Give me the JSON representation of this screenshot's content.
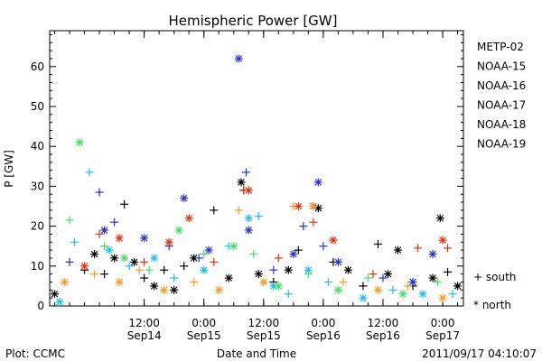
{
  "chart_data": {
    "type": "scatter",
    "title": "Hemispheric Power [GW]",
    "xlabel": "Date and Time",
    "ylabel": "P [GW]",
    "ylim": [
      0,
      69
    ],
    "yticks": [
      0,
      10,
      20,
      30,
      40,
      50,
      60
    ],
    "xlim": [
      "2011-09-13 17:00",
      "2011-09-17 04:10"
    ],
    "xticks": [
      {
        "time": "2011-09-14 12:00",
        "label": "12:00",
        "sublabel": "Sep14"
      },
      {
        "time": "2011-09-15 00:00",
        "label": "0:00",
        "sublabel": "Sep15"
      },
      {
        "time": "2011-09-15 12:00",
        "label": "12:00",
        "sublabel": "Sep15"
      },
      {
        "time": "2011-09-16 00:00",
        "label": "0:00",
        "sublabel": "Sep16"
      },
      {
        "time": "2011-09-16 12:00",
        "label": "12:00",
        "sublabel": "Sep16"
      },
      {
        "time": "2011-09-17 00:00",
        "label": "0:00",
        "sublabel": "Sep17"
      }
    ],
    "grid": false,
    "legend_position": "right",
    "markers": {
      "south": "+",
      "north": "*"
    },
    "marker_legend": [
      {
        "symbol": "+",
        "label": "south"
      },
      {
        "symbol": "*",
        "label": "north"
      }
    ],
    "series": [
      {
        "name": "METP-02",
        "color": "#000000",
        "points": [
          {
            "t": "2011-09-13 18:00",
            "y": 3,
            "hemi": "north"
          },
          {
            "t": "2011-09-14 00:00",
            "y": 9,
            "hemi": "south"
          },
          {
            "t": "2011-09-14 02:00",
            "y": 13,
            "hemi": "north"
          },
          {
            "t": "2011-09-14 04:00",
            "y": 8,
            "hemi": "south"
          },
          {
            "t": "2011-09-14 06:00",
            "y": 12,
            "hemi": "north"
          },
          {
            "t": "2011-09-14 08:00",
            "y": 25.5,
            "hemi": "south"
          },
          {
            "t": "2011-09-14 10:00",
            "y": 11,
            "hemi": "north"
          },
          {
            "t": "2011-09-14 12:00",
            "y": 7,
            "hemi": "south"
          },
          {
            "t": "2011-09-14 14:00",
            "y": 5,
            "hemi": "north"
          },
          {
            "t": "2011-09-14 16:00",
            "y": 9,
            "hemi": "south"
          },
          {
            "t": "2011-09-14 18:00",
            "y": 4,
            "hemi": "north"
          },
          {
            "t": "2011-09-14 20:00",
            "y": 10,
            "hemi": "south"
          },
          {
            "t": "2011-09-14 22:00",
            "y": 12,
            "hemi": "north"
          },
          {
            "t": "2011-09-15 02:00",
            "y": 24,
            "hemi": "south"
          },
          {
            "t": "2011-09-15 05:00",
            "y": 7,
            "hemi": "north"
          },
          {
            "t": "2011-09-15 07:30",
            "y": 31,
            "hemi": "north"
          },
          {
            "t": "2011-09-15 08:00",
            "y": 29,
            "hemi": "south"
          },
          {
            "t": "2011-09-15 11:00",
            "y": 8,
            "hemi": "north"
          },
          {
            "t": "2011-09-15 14:00",
            "y": 6,
            "hemi": "south"
          },
          {
            "t": "2011-09-15 17:00",
            "y": 9,
            "hemi": "north"
          },
          {
            "t": "2011-09-15 19:00",
            "y": 14,
            "hemi": "south"
          },
          {
            "t": "2011-09-15 22:00",
            "y": 25,
            "hemi": "north"
          },
          {
            "t": "2011-09-15 23:00",
            "y": 24.5,
            "hemi": "north"
          },
          {
            "t": "2011-09-16 02:00",
            "y": 11,
            "hemi": "south"
          },
          {
            "t": "2011-09-16 05:00",
            "y": 9,
            "hemi": "north"
          },
          {
            "t": "2011-09-16 08:00",
            "y": 5,
            "hemi": "south"
          },
          {
            "t": "2011-09-16 11:00",
            "y": 15.5,
            "hemi": "south"
          },
          {
            "t": "2011-09-16 13:00",
            "y": 8,
            "hemi": "north"
          },
          {
            "t": "2011-09-16 15:00",
            "y": 14,
            "hemi": "north"
          },
          {
            "t": "2011-09-16 18:00",
            "y": 5,
            "hemi": "south"
          },
          {
            "t": "2011-09-16 22:00",
            "y": 7,
            "hemi": "north"
          },
          {
            "t": "2011-09-16 23:30",
            "y": 22,
            "hemi": "north"
          },
          {
            "t": "2011-09-17 01:00",
            "y": 8.5,
            "hemi": "south"
          },
          {
            "t": "2011-09-17 03:00",
            "y": 5,
            "hemi": "north"
          }
        ]
      },
      {
        "name": "NOAA-15",
        "color": "#2233cc",
        "points": [
          {
            "t": "2011-09-13 21:00",
            "y": 11,
            "hemi": "south"
          },
          {
            "t": "2011-09-14 03:00",
            "y": 28.5,
            "hemi": "south"
          },
          {
            "t": "2011-09-14 04:00",
            "y": 19,
            "hemi": "north"
          },
          {
            "t": "2011-09-14 06:00",
            "y": 21,
            "hemi": "south"
          },
          {
            "t": "2011-09-14 12:00",
            "y": 17,
            "hemi": "north"
          },
          {
            "t": "2011-09-14 17:00",
            "y": 15,
            "hemi": "south"
          },
          {
            "t": "2011-09-14 20:00",
            "y": 27,
            "hemi": "north"
          },
          {
            "t": "2011-09-14 23:00",
            "y": 12,
            "hemi": "south"
          },
          {
            "t": "2011-09-15 01:00",
            "y": 14,
            "hemi": "north"
          },
          {
            "t": "2011-09-15 07:00",
            "y": 62,
            "hemi": "north"
          },
          {
            "t": "2011-09-15 08:30",
            "y": 33.5,
            "hemi": "south"
          },
          {
            "t": "2011-09-15 09:00",
            "y": 19,
            "hemi": "north"
          },
          {
            "t": "2011-09-15 14:00",
            "y": 9,
            "hemi": "south"
          },
          {
            "t": "2011-09-15 18:00",
            "y": 13,
            "hemi": "north"
          },
          {
            "t": "2011-09-15 20:00",
            "y": 20,
            "hemi": "south"
          },
          {
            "t": "2011-09-15 23:00",
            "y": 31,
            "hemi": "north"
          },
          {
            "t": "2011-09-16 00:00",
            "y": 15,
            "hemi": "south"
          },
          {
            "t": "2011-09-16 03:00",
            "y": 11,
            "hemi": "north"
          },
          {
            "t": "2011-09-16 12:00",
            "y": 7,
            "hemi": "south"
          },
          {
            "t": "2011-09-16 18:00",
            "y": 6,
            "hemi": "north"
          },
          {
            "t": "2011-09-16 22:00",
            "y": 13,
            "hemi": "north"
          }
        ]
      },
      {
        "name": "NOAA-16",
        "color": "#22bbee",
        "points": [
          {
            "t": "2011-09-13 19:00",
            "y": 1,
            "hemi": "north"
          },
          {
            "t": "2011-09-13 22:00",
            "y": 16,
            "hemi": "south"
          },
          {
            "t": "2011-09-14 01:00",
            "y": 33.5,
            "hemi": "south"
          },
          {
            "t": "2011-09-14 05:00",
            "y": 14,
            "hemi": "north"
          },
          {
            "t": "2011-09-14 09:00",
            "y": 10,
            "hemi": "south"
          },
          {
            "t": "2011-09-14 14:00",
            "y": 12,
            "hemi": "north"
          },
          {
            "t": "2011-09-14 18:00",
            "y": 7,
            "hemi": "south"
          },
          {
            "t": "2011-09-15 00:00",
            "y": 9,
            "hemi": "north"
          },
          {
            "t": "2011-09-15 05:00",
            "y": 15,
            "hemi": "south"
          },
          {
            "t": "2011-09-15 09:00",
            "y": 22,
            "hemi": "north"
          },
          {
            "t": "2011-09-15 11:00",
            "y": 22.5,
            "hemi": "south"
          },
          {
            "t": "2011-09-15 14:00",
            "y": 5,
            "hemi": "north"
          },
          {
            "t": "2011-09-15 17:00",
            "y": 3,
            "hemi": "south"
          },
          {
            "t": "2011-09-15 21:00",
            "y": 9,
            "hemi": "north"
          },
          {
            "t": "2011-09-16 01:00",
            "y": 6,
            "hemi": "south"
          },
          {
            "t": "2011-09-16 08:00",
            "y": 2,
            "hemi": "north"
          },
          {
            "t": "2011-09-16 14:00",
            "y": 4,
            "hemi": "south"
          },
          {
            "t": "2011-09-16 20:00",
            "y": 3,
            "hemi": "north"
          },
          {
            "t": "2011-09-17 02:00",
            "y": 3,
            "hemi": "south"
          }
        ]
      },
      {
        "name": "NOAA-17",
        "color": "#44dd66",
        "points": [
          {
            "t": "2011-09-13 21:00",
            "y": 21.5,
            "hemi": "south"
          },
          {
            "t": "2011-09-13 23:00",
            "y": 41,
            "hemi": "north"
          },
          {
            "t": "2011-09-14 04:00",
            "y": 15,
            "hemi": "south"
          },
          {
            "t": "2011-09-14 08:00",
            "y": 12,
            "hemi": "north"
          },
          {
            "t": "2011-09-14 13:00",
            "y": 9,
            "hemi": "south"
          },
          {
            "t": "2011-09-14 19:00",
            "y": 19,
            "hemi": "north"
          },
          {
            "t": "2011-09-15 00:00",
            "y": 13,
            "hemi": "south"
          },
          {
            "t": "2011-09-15 06:00",
            "y": 15,
            "hemi": "north"
          },
          {
            "t": "2011-09-15 10:00",
            "y": 13,
            "hemi": "south"
          },
          {
            "t": "2011-09-15 15:00",
            "y": 5,
            "hemi": "north"
          },
          {
            "t": "2011-09-15 21:00",
            "y": 8,
            "hemi": "south"
          },
          {
            "t": "2011-09-16 03:00",
            "y": 4,
            "hemi": "north"
          },
          {
            "t": "2011-09-16 09:00",
            "y": 7,
            "hemi": "south"
          },
          {
            "t": "2011-09-16 16:00",
            "y": 3,
            "hemi": "north"
          },
          {
            "t": "2011-09-16 23:00",
            "y": 6,
            "hemi": "south"
          }
        ]
      },
      {
        "name": "NOAA-18",
        "color": "#ff9922",
        "points": [
          {
            "t": "2011-09-13 20:00",
            "y": 6,
            "hemi": "north"
          },
          {
            "t": "2011-09-14 02:00",
            "y": 8,
            "hemi": "south"
          },
          {
            "t": "2011-09-14 07:00",
            "y": 6,
            "hemi": "north"
          },
          {
            "t": "2011-09-14 11:00",
            "y": 9,
            "hemi": "south"
          },
          {
            "t": "2011-09-14 16:00",
            "y": 4,
            "hemi": "north"
          },
          {
            "t": "2011-09-14 22:00",
            "y": 6,
            "hemi": "south"
          },
          {
            "t": "2011-09-15 03:00",
            "y": 4,
            "hemi": "north"
          },
          {
            "t": "2011-09-15 07:00",
            "y": 24,
            "hemi": "south"
          },
          {
            "t": "2011-09-15 12:00",
            "y": 6,
            "hemi": "north"
          },
          {
            "t": "2011-09-15 18:00",
            "y": 25,
            "hemi": "south"
          },
          {
            "t": "2011-09-15 22:00",
            "y": 25,
            "hemi": "north"
          },
          {
            "t": "2011-09-16 04:00",
            "y": 6,
            "hemi": "south"
          },
          {
            "t": "2011-09-16 11:00",
            "y": 4,
            "hemi": "north"
          },
          {
            "t": "2011-09-16 17:00",
            "y": 5,
            "hemi": "south"
          },
          {
            "t": "2011-09-17 00:00",
            "y": 2,
            "hemi": "north"
          }
        ]
      },
      {
        "name": "NOAA-19",
        "color": "#dd3311",
        "points": [
          {
            "t": "2011-09-14 00:00",
            "y": 10,
            "hemi": "north"
          },
          {
            "t": "2011-09-14 03:00",
            "y": 18,
            "hemi": "south"
          },
          {
            "t": "2011-09-14 07:00",
            "y": 17,
            "hemi": "north"
          },
          {
            "t": "2011-09-14 12:00",
            "y": 11,
            "hemi": "south"
          },
          {
            "t": "2011-09-14 17:00",
            "y": 16,
            "hemi": "north"
          },
          {
            "t": "2011-09-14 21:00",
            "y": 22,
            "hemi": "north"
          },
          {
            "t": "2011-09-15 02:00",
            "y": 11,
            "hemi": "south"
          },
          {
            "t": "2011-09-15 08:00",
            "y": 29,
            "hemi": "south"
          },
          {
            "t": "2011-09-15 09:00",
            "y": 29,
            "hemi": "north"
          },
          {
            "t": "2011-09-15 15:00",
            "y": 12,
            "hemi": "south"
          },
          {
            "t": "2011-09-15 19:00",
            "y": 25,
            "hemi": "north"
          },
          {
            "t": "2011-09-15 22:00",
            "y": 21,
            "hemi": "south"
          },
          {
            "t": "2011-09-16 02:00",
            "y": 16.5,
            "hemi": "north"
          },
          {
            "t": "2011-09-16 10:00",
            "y": 8,
            "hemi": "south"
          },
          {
            "t": "2011-09-16 19:00",
            "y": 14.5,
            "hemi": "south"
          },
          {
            "t": "2011-09-17 00:00",
            "y": 16.5,
            "hemi": "north"
          },
          {
            "t": "2011-09-17 01:00",
            "y": 14.5,
            "hemi": "south"
          }
        ]
      }
    ],
    "annotations": {
      "plot_credit": "Plot: CCMC",
      "timestamp": "2011/09/17 04:10:07"
    }
  }
}
